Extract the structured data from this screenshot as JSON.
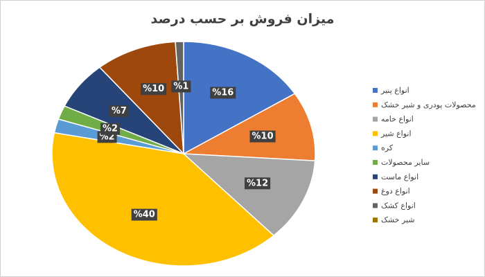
{
  "chart_data": {
    "type": "pie",
    "title": "میزان فروش بر حسب درصد",
    "categories": [
      "انواع پنیر",
      "محصولات پودری و شیر خشک",
      "انواع خامه",
      "انواع شیر",
      "کره",
      "سایر محصولات",
      "انواع ماست",
      "انواع دوغ",
      "انواع کشک",
      "شیر خشک"
    ],
    "values": [
      16,
      10,
      12,
      40,
      2,
      2,
      7,
      10,
      1,
      0
    ],
    "value_labels": [
      "%16",
      "%10",
      "%12",
      "%40",
      "%2",
      "%2",
      "%7",
      "%10",
      "%1",
      null
    ],
    "colors": [
      "#4472c4",
      "#ed7d31",
      "#a5a5a5",
      "#ffc000",
      "#5b9bd5",
      "#70ad47",
      "#264478",
      "#9e480e",
      "#636363",
      "#997300"
    ],
    "legend": "right"
  }
}
